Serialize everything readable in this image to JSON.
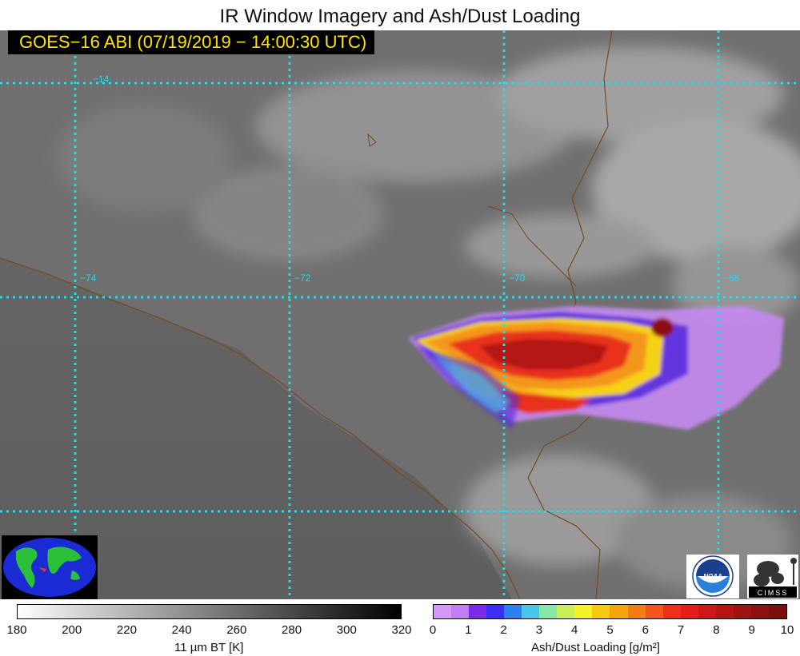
{
  "title": "IR Window Imagery and Ash/Dust Loading",
  "timestamp": "GOES−16 ABI (07/19/2019 − 14:00:30 UTC)",
  "graticule": {
    "color": "#28d7e8",
    "latitude_labels": [
      "−14"
    ],
    "longitude_labels": [
      "−74",
      "−72",
      "−70",
      "−68"
    ]
  },
  "colors": {
    "background": "#5e5e5e",
    "border_lines": "#7a4a1c",
    "timestamp_text": "#ffe400"
  },
  "logos": {
    "noaa": "NOAA",
    "cimss": "CIMSS"
  },
  "bt_colorbar": {
    "ticks": [
      "180",
      "200",
      "220",
      "240",
      "260",
      "280",
      "300",
      "320"
    ],
    "label": "11 µm BT [K]",
    "range": [
      180,
      320
    ],
    "colors": [
      "#ffffff",
      "#000000"
    ]
  },
  "ash_colorbar": {
    "ticks": [
      "0",
      "1",
      "2",
      "3",
      "4",
      "5",
      "6",
      "7",
      "8",
      "9",
      "10"
    ],
    "label": "Ash/Dust Loading [g/m²]",
    "range": [
      0,
      10
    ],
    "colors": [
      "#d39af7",
      "#c27ef7",
      "#7b2be8",
      "#3b2df2",
      "#2f7ff3",
      "#47c8e8",
      "#88e8a8",
      "#c8ef5a",
      "#f6f22a",
      "#f7ca12",
      "#f6a40e",
      "#f57c10",
      "#f55518",
      "#ef2f1c",
      "#e41c1c",
      "#cc1818",
      "#b41414",
      "#9e1212",
      "#8c1010",
      "#7c0e0e"
    ]
  }
}
